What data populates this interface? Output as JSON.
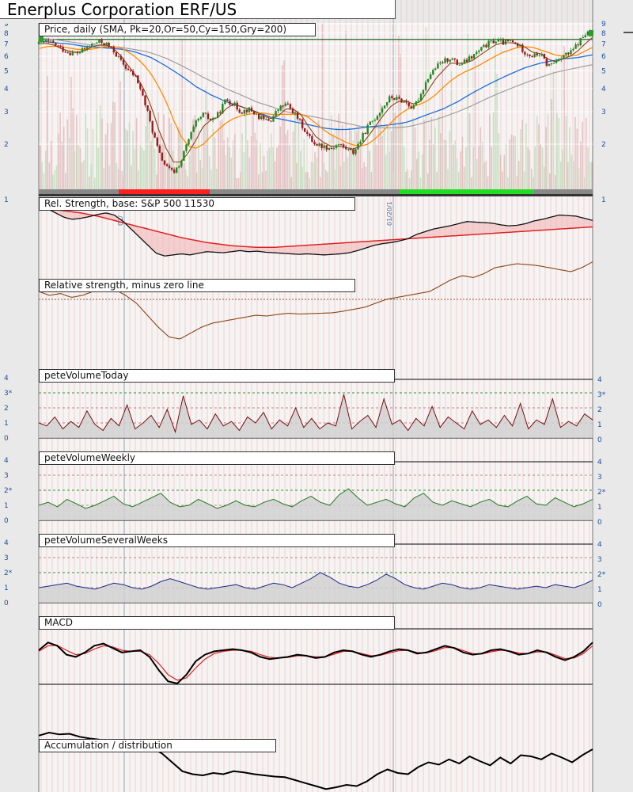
{
  "title": "Enerplus Corporation ERF/US",
  "colors": {
    "background": "#e9e9e9",
    "plot_bg": "#f4f4f4",
    "up_candle": "#1f8a1f",
    "down_candle": "#9b1b1b",
    "sma20": "#8b4513",
    "sma50": "#ff8c00",
    "sma150": "#1e6fd9",
    "sma200": "#a0a0a0",
    "rs_line": "#111111",
    "rs_ma": "#e02020",
    "vol_today": "#7a1010",
    "vol_weekly": "#1d7a1d",
    "vol_several": "#1a2a8a",
    "macd": "#000000",
    "macd_signal": "#e02020",
    "ad_line": "#000000",
    "axis_text": "#1f4fa0"
  },
  "chart_data": [
    {
      "id": "price",
      "type": "candlestick",
      "title": "Price, daily (SMA, Pk=20,Or=50,Cy=150,Gry=200)",
      "scale": "log",
      "ylim": [
        1,
        9
      ],
      "y_ticks_left": [
        "9",
        "8",
        "7",
        "6",
        "5",
        "4",
        "3",
        "2",
        "1"
      ],
      "y_ticks_right": [
        "9",
        "8",
        "7",
        "6",
        "5",
        "4",
        "3",
        "2",
        "1"
      ],
      "date_labels": [
        "01/",
        "01/20/1"
      ],
      "grid": true,
      "close_path": [
        7.0,
        7.2,
        7.0,
        6.6,
        6.3,
        6.2,
        6.5,
        6.9,
        7.2,
        7.0,
        6.4,
        5.6,
        5.0,
        4.6,
        3.5,
        2.5,
        1.8,
        1.5,
        1.4,
        1.6,
        2.1,
        2.6,
        2.9,
        2.7,
        2.9,
        3.5,
        3.3,
        3.0,
        3.1,
        2.9,
        2.7,
        2.7,
        3.1,
        3.3,
        3.0,
        2.6,
        2.2,
        2.0,
        1.95,
        1.9,
        2.0,
        1.9,
        1.8,
        2.1,
        2.5,
        2.8,
        3.2,
        3.6,
        3.5,
        3.4,
        3.1,
        3.7,
        4.6,
        5.2,
        5.6,
        5.9,
        5.4,
        5.6,
        6.0,
        6.5,
        7.0,
        7.3,
        7.1,
        7.2,
        6.9,
        6.3,
        6.0,
        6.2,
        5.3,
        5.6,
        6.1,
        6.2,
        7.0,
        7.9,
        8.1
      ],
      "sma20": [
        7.0,
        7.05,
        6.9,
        6.6,
        6.4,
        6.3,
        6.4,
        6.7,
        6.9,
        6.9,
        6.6,
        6.0,
        5.3,
        4.7,
        4.0,
        3.2,
        2.4,
        1.9,
        1.6,
        1.6,
        1.8,
        2.1,
        2.5,
        2.7,
        2.8,
        3.1,
        3.3,
        3.2,
        3.1,
        3.0,
        2.85,
        2.75,
        2.85,
        3.1,
        3.1,
        2.9,
        2.5,
        2.2,
        2.05,
        1.95,
        1.95,
        1.92,
        1.88,
        1.95,
        2.2,
        2.5,
        2.85,
        3.2,
        3.4,
        3.45,
        3.3,
        3.4,
        3.9,
        4.5,
        5.0,
        5.5,
        5.5,
        5.5,
        5.7,
        6.1,
        6.5,
        6.9,
        7.1,
        7.1,
        7.0,
        6.7,
        6.3,
        6.2,
        5.8,
        5.6,
        5.8,
        6.0,
        6.4,
        7.0,
        7.6
      ],
      "sma50": [
        6.6,
        6.75,
        6.8,
        6.75,
        6.65,
        6.55,
        6.5,
        6.55,
        6.65,
        6.75,
        6.75,
        6.65,
        6.3,
        5.9,
        5.4,
        4.8,
        4.1,
        3.4,
        2.7,
        2.2,
        1.95,
        1.9,
        2.0,
        2.2,
        2.4,
        2.6,
        2.75,
        2.85,
        2.9,
        2.95,
        2.95,
        2.9,
        2.9,
        2.9,
        2.9,
        2.9,
        2.8,
        2.6,
        2.4,
        2.25,
        2.15,
        2.05,
        1.98,
        1.95,
        2.0,
        2.15,
        2.35,
        2.6,
        2.85,
        3.05,
        3.2,
        3.3,
        3.45,
        3.7,
        4.05,
        4.4,
        4.7,
        4.95,
        5.15,
        5.4,
        5.7,
        6.0,
        6.3,
        6.5,
        6.7,
        6.75,
        6.7,
        6.5,
        6.3,
        6.1,
        6.0,
        6.0,
        6.1,
        6.4,
        6.7
      ],
      "sma150": [
        7.3,
        7.2,
        7.1,
        7.05,
        7.0,
        6.9,
        6.8,
        6.75,
        6.7,
        6.65,
        6.6,
        6.55,
        6.45,
        6.3,
        6.1,
        5.9,
        5.6,
        5.3,
        5.0,
        4.7,
        4.4,
        4.1,
        3.9,
        3.7,
        3.55,
        3.4,
        3.3,
        3.2,
        3.1,
        3.0,
        2.9,
        2.8,
        2.75,
        2.7,
        2.65,
        2.6,
        2.55,
        2.5,
        2.45,
        2.42,
        2.4,
        2.4,
        2.42,
        2.45,
        2.48,
        2.5,
        2.52,
        2.55,
        2.58,
        2.62,
        2.7,
        2.8,
        2.9,
        3.0,
        3.1,
        3.25,
        3.4,
        3.6,
        3.8,
        4.0,
        4.2,
        4.4,
        4.6,
        4.8,
        5.0,
        5.2,
        5.35,
        5.5,
        5.6,
        5.7,
        5.8,
        5.85,
        5.9,
        6.0,
        6.1
      ],
      "sma200": [
        7.5,
        7.45,
        7.4,
        7.3,
        7.2,
        7.1,
        7.0,
        6.9,
        6.85,
        6.8,
        6.75,
        6.7,
        6.6,
        6.5,
        6.4,
        6.25,
        6.05,
        5.85,
        5.6,
        5.35,
        5.1,
        4.85,
        4.6,
        4.4,
        4.2,
        4.0,
        3.85,
        3.7,
        3.55,
        3.4,
        3.3,
        3.2,
        3.1,
        3.0,
        2.95,
        2.9,
        2.85,
        2.8,
        2.75,
        2.7,
        2.65,
        2.6,
        2.55,
        2.5,
        2.48,
        2.46,
        2.45,
        2.45,
        2.46,
        2.48,
        2.52,
        2.58,
        2.65,
        2.72,
        2.8,
        2.9,
        3.0,
        3.12,
        3.25,
        3.4,
        3.55,
        3.7,
        3.85,
        4.0,
        4.15,
        4.3,
        4.45,
        4.6,
        4.75,
        4.9,
        5.0,
        5.1,
        5.2,
        5.3,
        5.4
      ],
      "resistance_level": 7.4
    },
    {
      "id": "rel-strength",
      "type": "line",
      "title": "Rel. Strength, base: S&P 500 11530",
      "rs": [
        0.95,
        0.98,
        0.9,
        0.82,
        0.78,
        0.8,
        0.83,
        0.87,
        0.9,
        0.86,
        0.75,
        0.6,
        0.45,
        0.3,
        0.15,
        0.1,
        0.12,
        0.14,
        0.12,
        0.15,
        0.18,
        0.17,
        0.16,
        0.18,
        0.2,
        0.18,
        0.19,
        0.17,
        0.16,
        0.15,
        0.14,
        0.13,
        0.14,
        0.13,
        0.12,
        0.13,
        0.14,
        0.16,
        0.2,
        0.25,
        0.3,
        0.33,
        0.35,
        0.38,
        0.42,
        0.5,
        0.55,
        0.6,
        0.63,
        0.66,
        0.7,
        0.74,
        0.73,
        0.72,
        0.71,
        0.68,
        0.66,
        0.67,
        0.7,
        0.75,
        0.78,
        0.82,
        0.86,
        0.85,
        0.84,
        0.8,
        0.76
      ],
      "rs_ma": [
        1.0,
        0.98,
        0.96,
        0.94,
        0.92,
        0.9,
        0.87,
        0.84,
        0.8,
        0.76,
        0.72,
        0.68,
        0.64,
        0.6,
        0.56,
        0.52,
        0.48,
        0.44,
        0.41,
        0.38,
        0.35,
        0.33,
        0.31,
        0.29,
        0.28,
        0.27,
        0.26,
        0.26,
        0.26,
        0.27,
        0.28,
        0.29,
        0.3,
        0.31,
        0.32,
        0.33,
        0.34,
        0.35,
        0.36,
        0.37,
        0.38,
        0.39,
        0.4,
        0.41,
        0.42,
        0.43,
        0.44,
        0.45,
        0.46,
        0.47,
        0.48,
        0.49,
        0.5,
        0.51,
        0.52,
        0.53,
        0.54,
        0.55,
        0.56,
        0.57,
        0.58,
        0.59,
        0.6,
        0.61,
        0.62,
        0.63,
        0.64
      ]
    },
    {
      "id": "rs-zero",
      "type": "line",
      "title": "Relative strength, minus zero line",
      "values": [
        0.2,
        0.1,
        0.15,
        0.05,
        0.1,
        0.2,
        0.3,
        0.25,
        0.1,
        -0.1,
        -0.4,
        -0.7,
        -0.95,
        -1.0,
        -0.85,
        -0.7,
        -0.6,
        -0.55,
        -0.5,
        -0.45,
        -0.4,
        -0.42,
        -0.38,
        -0.35,
        -0.37,
        -0.36,
        -0.35,
        -0.34,
        -0.3,
        -0.25,
        -0.2,
        -0.1,
        0.0,
        0.05,
        0.1,
        0.15,
        0.2,
        0.35,
        0.5,
        0.6,
        0.55,
        0.65,
        0.8,
        0.85,
        0.9,
        0.88,
        0.85,
        0.8,
        0.75,
        0.7,
        0.8,
        0.95
      ],
      "zero_line": 0
    },
    {
      "id": "vol-today",
      "type": "line",
      "title": "peteVolumeToday",
      "y_ticks": [
        "4",
        "3*",
        "2",
        "1",
        "0"
      ],
      "values": [
        1.0,
        0.8,
        1.4,
        0.6,
        1.1,
        0.7,
        1.8,
        0.9,
        0.5,
        1.3,
        0.8,
        2.2,
        0.6,
        1.0,
        1.5,
        0.7,
        1.9,
        0.4,
        2.8,
        0.9,
        1.2,
        0.6,
        1.6,
        0.8,
        1.1,
        0.5,
        1.4,
        1.0,
        1.7,
        0.6,
        1.2,
        0.8,
        2.0,
        0.7,
        1.3,
        0.6,
        1.0,
        0.8,
        2.9,
        0.6,
        1.1,
        1.5,
        0.7,
        2.6,
        0.9,
        1.2,
        0.5,
        1.3,
        0.8,
        2.1,
        0.7,
        1.4,
        1.0,
        0.6,
        1.8,
        0.9,
        1.2,
        0.7,
        1.5,
        0.8,
        2.3,
        0.6,
        1.2,
        0.9,
        2.6,
        0.7,
        1.1,
        0.8,
        1.6,
        1.2
      ]
    },
    {
      "id": "vol-weekly",
      "type": "line",
      "title": "peteVolumeWeekly",
      "y_ticks": [
        "4",
        "3",
        "2*",
        "1",
        "0"
      ],
      "values": [
        1.0,
        1.2,
        0.9,
        1.4,
        1.1,
        0.8,
        1.0,
        1.3,
        1.6,
        1.1,
        0.9,
        1.2,
        1.5,
        1.8,
        1.2,
        0.9,
        1.0,
        1.4,
        1.1,
        0.8,
        1.0,
        1.3,
        1.0,
        0.9,
        1.2,
        1.4,
        1.1,
        0.9,
        1.3,
        1.6,
        1.2,
        1.0,
        1.7,
        2.1,
        1.5,
        1.0,
        1.2,
        1.4,
        1.1,
        0.9,
        1.5,
        1.8,
        1.2,
        1.0,
        1.3,
        1.1,
        0.9,
        1.2,
        1.4,
        1.0,
        0.9,
        1.3,
        1.6,
        1.1,
        1.0,
        1.5,
        1.2,
        0.9,
        1.1,
        1.4
      ]
    },
    {
      "id": "vol-several",
      "type": "line",
      "title": "peteVolumeSeveralWeeks",
      "y_ticks": [
        "4",
        "3",
        "2*",
        "1",
        "0"
      ],
      "values": [
        1.0,
        1.1,
        1.2,
        1.3,
        1.1,
        1.0,
        0.9,
        1.1,
        1.3,
        1.2,
        1.0,
        0.9,
        1.1,
        1.4,
        1.6,
        1.4,
        1.2,
        1.0,
        0.9,
        1.0,
        1.1,
        1.2,
        1.0,
        0.9,
        1.1,
        1.3,
        1.2,
        1.0,
        1.3,
        1.6,
        2.0,
        1.7,
        1.3,
        1.1,
        1.0,
        1.2,
        1.5,
        1.9,
        1.6,
        1.2,
        1.0,
        0.9,
        1.1,
        1.3,
        1.2,
        1.0,
        0.9,
        1.0,
        1.2,
        1.1,
        1.0,
        0.9,
        1.0,
        1.1,
        1.0,
        1.2,
        1.1,
        1.0,
        1.2,
        1.5
      ]
    },
    {
      "id": "macd",
      "type": "line",
      "title": "MACD",
      "macd": [
        0.5,
        0.85,
        0.7,
        0.3,
        0.2,
        0.4,
        0.7,
        0.8,
        0.6,
        0.4,
        0.45,
        0.5,
        0.2,
        -0.4,
        -0.9,
        -1.0,
        -0.6,
        0.0,
        0.3,
        0.45,
        0.5,
        0.55,
        0.5,
        0.4,
        0.2,
        0.1,
        0.15,
        0.2,
        0.3,
        0.25,
        0.15,
        0.2,
        0.4,
        0.5,
        0.45,
        0.3,
        0.2,
        0.3,
        0.45,
        0.55,
        0.5,
        0.35,
        0.4,
        0.55,
        0.7,
        0.6,
        0.4,
        0.3,
        0.35,
        0.5,
        0.55,
        0.45,
        0.3,
        0.35,
        0.5,
        0.4,
        0.2,
        0.05,
        0.2,
        0.45,
        0.85
      ],
      "signal": [
        0.45,
        0.7,
        0.72,
        0.5,
        0.3,
        0.35,
        0.55,
        0.7,
        0.65,
        0.5,
        0.45,
        0.45,
        0.3,
        -0.1,
        -0.6,
        -0.85,
        -0.75,
        -0.3,
        0.1,
        0.35,
        0.45,
        0.5,
        0.5,
        0.45,
        0.3,
        0.18,
        0.15,
        0.18,
        0.25,
        0.25,
        0.2,
        0.2,
        0.32,
        0.45,
        0.45,
        0.35,
        0.25,
        0.27,
        0.38,
        0.48,
        0.5,
        0.4,
        0.38,
        0.48,
        0.62,
        0.62,
        0.48,
        0.35,
        0.33,
        0.43,
        0.5,
        0.47,
        0.37,
        0.35,
        0.43,
        0.42,
        0.28,
        0.12,
        0.15,
        0.35,
        0.7
      ]
    },
    {
      "id": "accum-dist",
      "type": "line",
      "title": "Accumulation / distribution",
      "values": [
        0.95,
        1.0,
        0.97,
        0.98,
        0.93,
        0.9,
        0.88,
        0.85,
        0.83,
        0.8,
        0.78,
        0.74,
        0.65,
        0.5,
        0.35,
        0.3,
        0.28,
        0.32,
        0.3,
        0.35,
        0.33,
        0.3,
        0.28,
        0.26,
        0.25,
        0.2,
        0.15,
        0.1,
        0.05,
        0.08,
        0.12,
        0.1,
        0.18,
        0.3,
        0.38,
        0.32,
        0.3,
        0.42,
        0.5,
        0.46,
        0.55,
        0.48,
        0.6,
        0.52,
        0.45,
        0.58,
        0.48,
        0.62,
        0.6,
        0.55,
        0.65,
        0.58,
        0.5,
        0.62,
        0.72
      ]
    }
  ]
}
